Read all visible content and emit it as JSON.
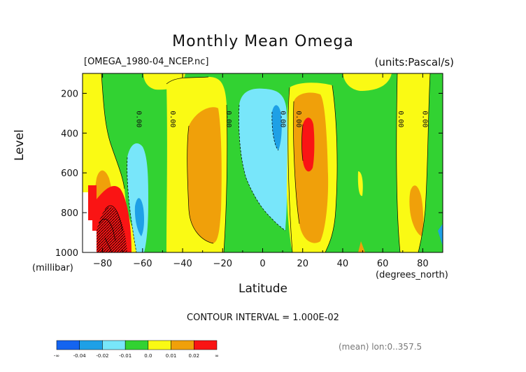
{
  "title": "Monthly Mean Omega",
  "file_label": "[OMEGA_1980-04_NCEP.nc]",
  "units_label": "(units:Pascal/s)",
  "contour_interval": "CONTOUR INTERVAL = 1.000E-02",
  "mean_label": "(mean) lon:0..357.5",
  "chart_data": {
    "type": "heatmap",
    "title": "Monthly Mean Omega",
    "xlabel": "Latitude",
    "xunit": "(degrees_north)",
    "ylabel": "Level",
    "yunit": "(millibar)",
    "xlim": [
      -90,
      90
    ],
    "ylim": [
      1000,
      100
    ],
    "x_ticks": [
      -80,
      -60,
      -40,
      -20,
      0,
      20,
      40,
      60,
      80
    ],
    "y_ticks": [
      200,
      400,
      600,
      800,
      1000
    ],
    "contour_labels": [
      "0.00",
      "0.00",
      "0.00",
      "0.00",
      "0.00",
      "0.00",
      "0.00"
    ],
    "colorbar": {
      "colors": [
        "#1464f0",
        "#1ea0e6",
        "#78e6fa",
        "#32d232",
        "#fafa14",
        "#f0a00a",
        "#fa1414"
      ],
      "labels": [
        "-∞",
        "-0.04",
        "-0.02",
        "-0.01",
        "0.0",
        "0.01",
        "0.02",
        "∞"
      ]
    },
    "regions": [
      {
        "level": "0.0 to 0.01",
        "lat": [
          -90,
          90
        ],
        "lev": [
          100,
          1000
        ]
      },
      {
        "level": "0.01 to 0.02",
        "lat": [
          -36,
          -22
        ],
        "lev": [
          330,
          980
        ]
      },
      {
        "level": "0.01 to 0.02",
        "lat": [
          15,
          33
        ],
        "lev": [
          230,
          920
        ]
      },
      {
        "level": "> 0.02",
        "lat": [
          -86,
          -70
        ],
        "lev": [
          680,
          1000
        ]
      },
      {
        "level": "> 0.02",
        "lat": [
          22,
          27
        ],
        "lev": [
          320,
          550
        ]
      },
      {
        "level": "-0.01 to 0.0",
        "lat": [
          -20,
          12
        ],
        "lev": [
          100,
          930
        ]
      },
      {
        "level": "-0.02 to -0.01",
        "lat": [
          -9,
          11
        ],
        "lev": [
          150,
          830
        ]
      },
      {
        "level": "-0.04 to -0.02",
        "lat": [
          7,
          11
        ],
        "lev": [
          220,
          400
        ]
      },
      {
        "level": "-0.04 to -0.02",
        "lat": [
          -65,
          -60
        ],
        "lev": [
          740,
          930
        ]
      }
    ]
  }
}
